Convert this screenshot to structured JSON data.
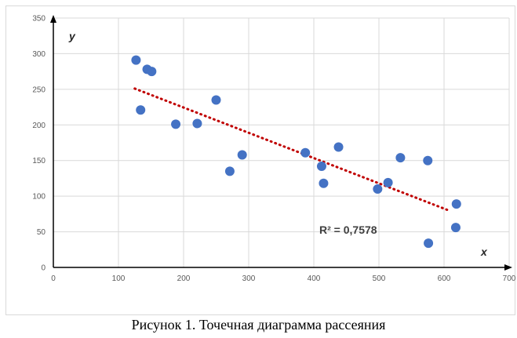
{
  "caption": "Рисунок 1. Точечная диаграмма рассеяния",
  "chart_data": {
    "type": "scatter",
    "xlabel": "x",
    "ylabel": "y",
    "xlim": [
      0,
      700
    ],
    "ylim": [
      0,
      350
    ],
    "x_ticks": [
      0,
      100,
      200,
      300,
      400,
      500,
      600,
      700
    ],
    "y_ticks": [
      0,
      50,
      100,
      150,
      200,
      250,
      300,
      350
    ],
    "grid": true,
    "points": [
      {
        "x": 127,
        "y": 291
      },
      {
        "x": 134,
        "y": 221
      },
      {
        "x": 144,
        "y": 278
      },
      {
        "x": 151,
        "y": 275
      },
      {
        "x": 188,
        "y": 201
      },
      {
        "x": 221,
        "y": 202
      },
      {
        "x": 250,
        "y": 235
      },
      {
        "x": 271,
        "y": 135
      },
      {
        "x": 290,
        "y": 158
      },
      {
        "x": 387,
        "y": 161
      },
      {
        "x": 412,
        "y": 142
      },
      {
        "x": 415,
        "y": 118
      },
      {
        "x": 438,
        "y": 169
      },
      {
        "x": 498,
        "y": 110
      },
      {
        "x": 514,
        "y": 119
      },
      {
        "x": 533,
        "y": 154
      },
      {
        "x": 575,
        "y": 150
      },
      {
        "x": 576,
        "y": 34
      },
      {
        "x": 618,
        "y": 56
      },
      {
        "x": 619,
        "y": 89
      }
    ],
    "trendline": {
      "type": "linear",
      "x_start": 125,
      "y_start": 251,
      "x_end": 610,
      "y_end": 79,
      "color": "#c00000",
      "label": "R² = 0,7578"
    },
    "marker_color": "#4472c4",
    "grid_color": "#d9d9d9"
  }
}
